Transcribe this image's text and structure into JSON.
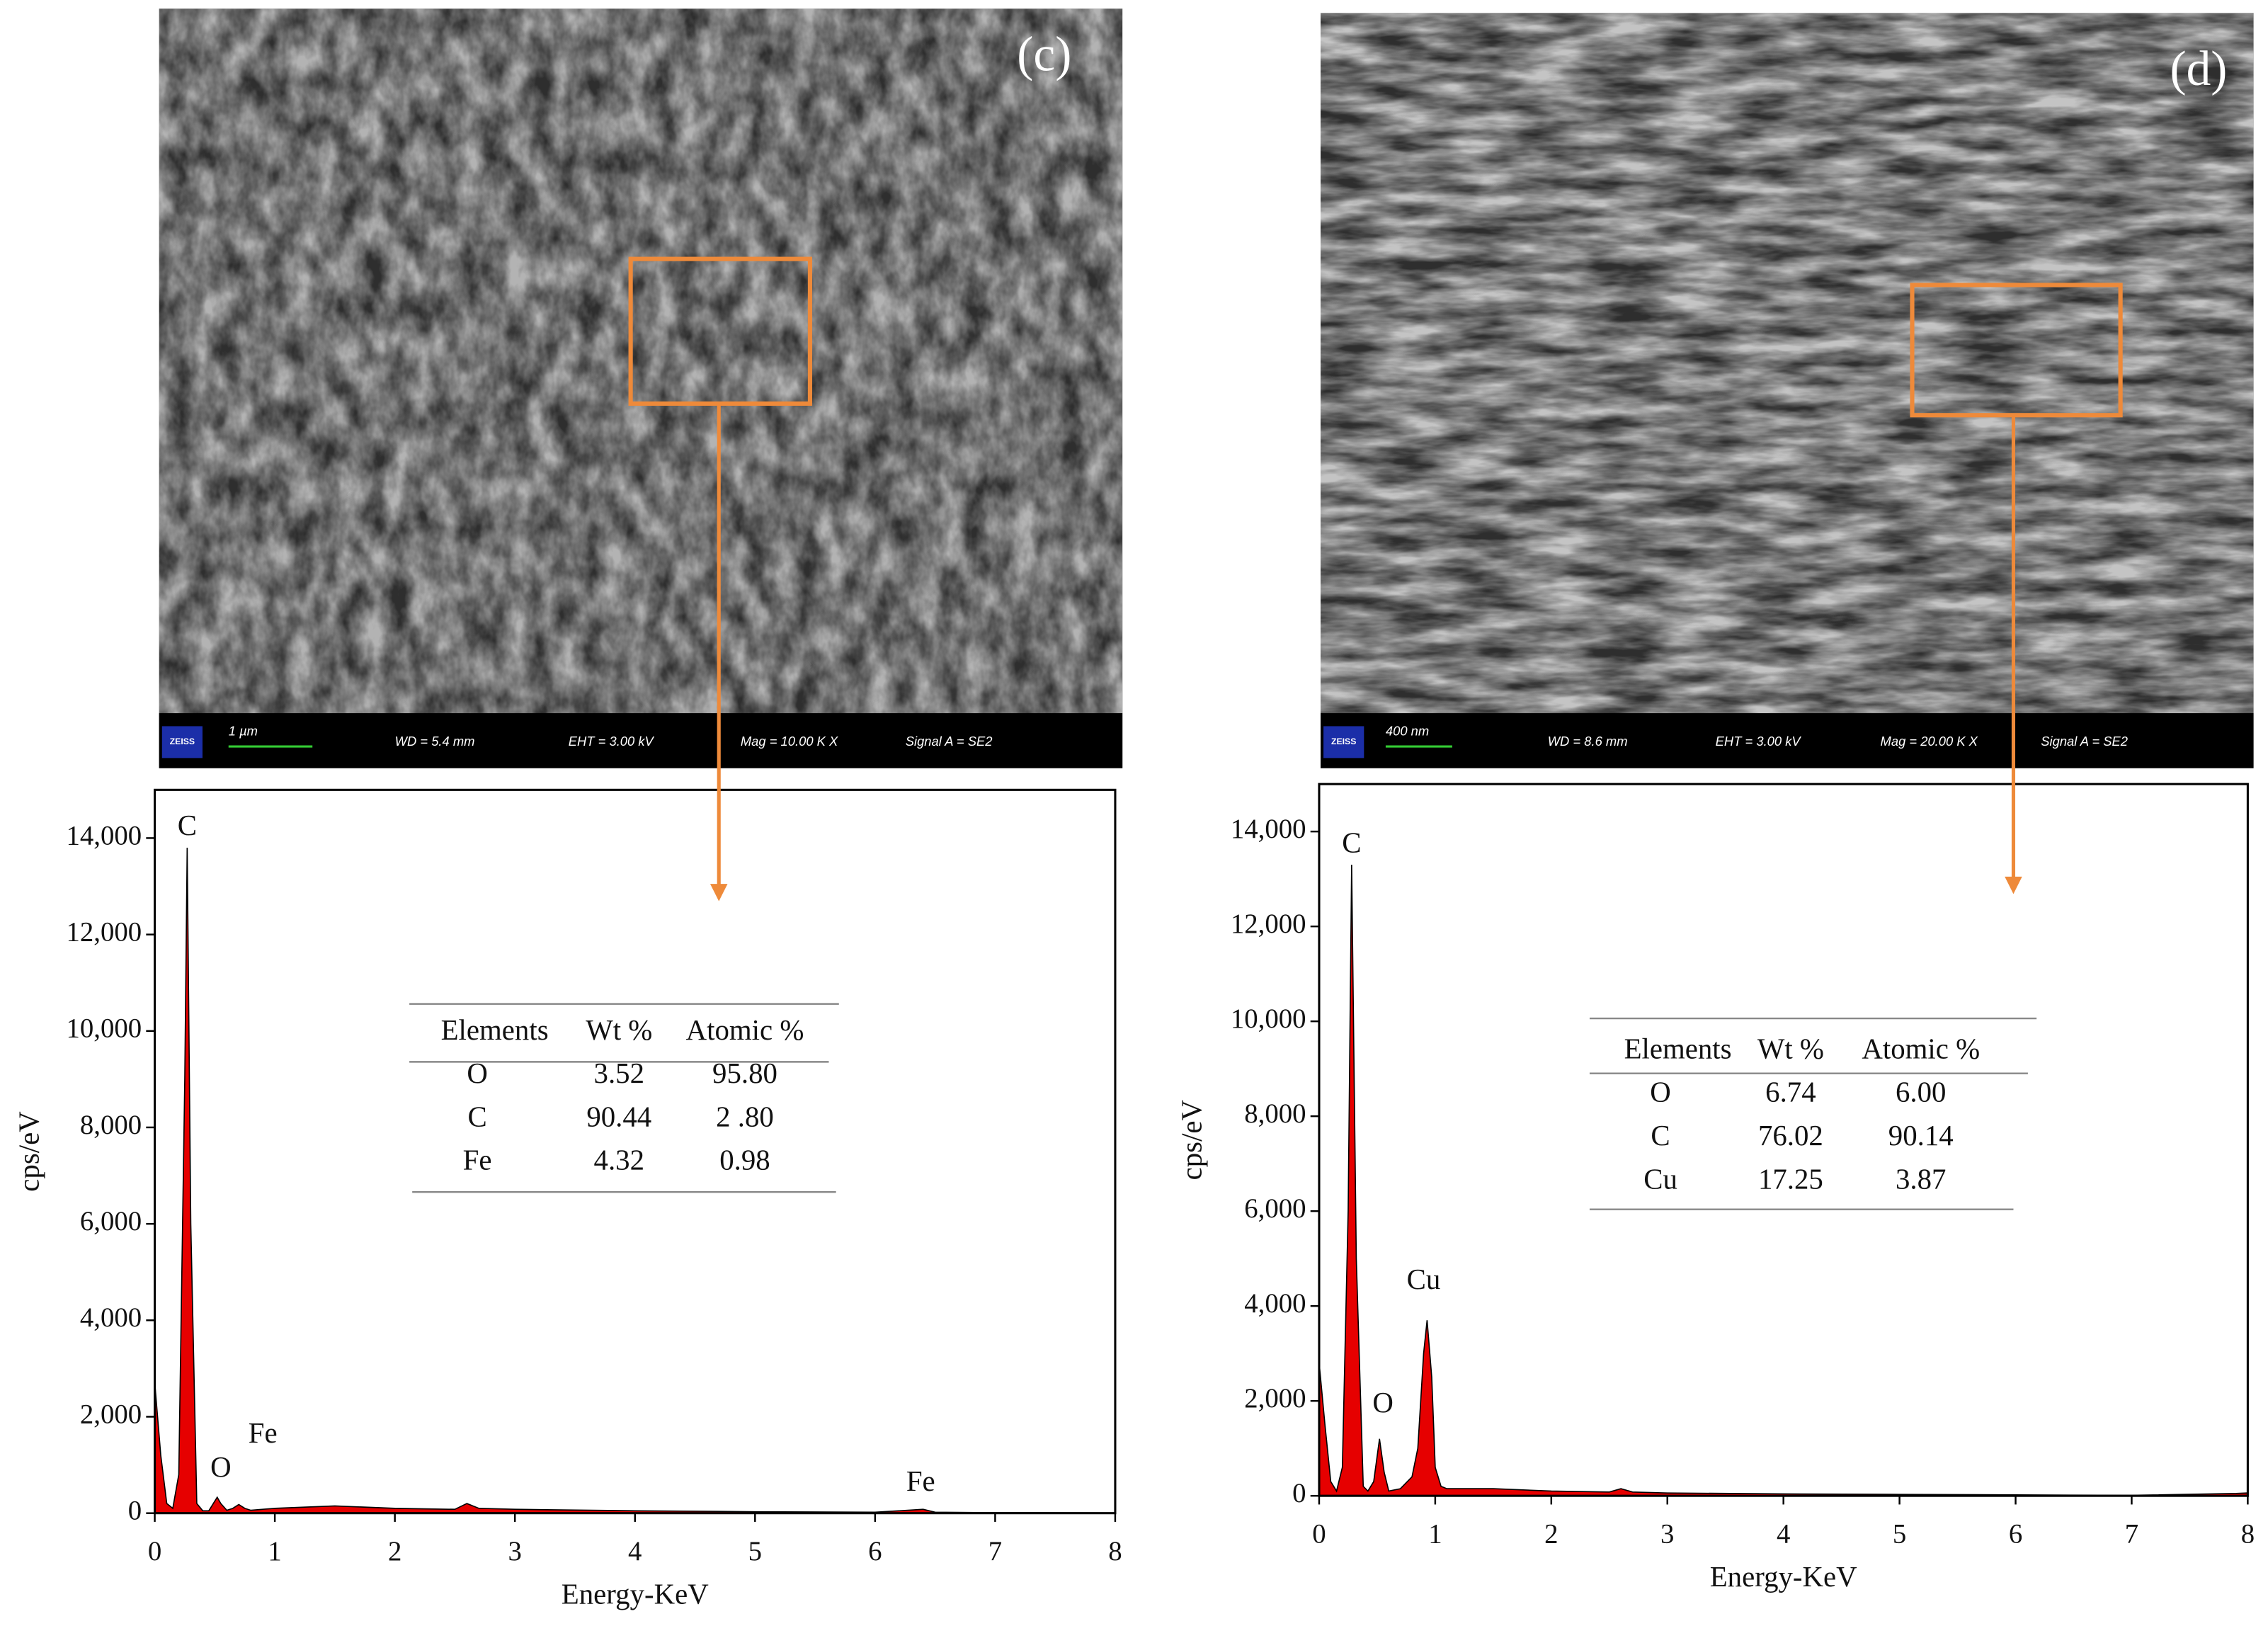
{
  "chart_data": [
    {
      "type": "area",
      "panel": "(c)",
      "sem_bar": [
        "ZEISS",
        "1 µm",
        "WD = 5.4 mm",
        "EHT = 3.00 kV",
        "Mag = 10.00 K X",
        "Signal A = SE2"
      ],
      "xlabel": "Energy-KeV",
      "ylabel": "cps/eV",
      "color": "#e60000",
      "x": [
        0,
        0.05,
        0.1,
        0.15,
        0.2,
        0.25,
        0.27,
        0.3,
        0.35,
        0.4,
        0.45,
        0.5,
        0.52,
        0.55,
        0.6,
        0.65,
        0.7,
        0.75,
        0.8,
        1,
        1.5,
        2,
        2.5,
        2.6,
        2.7,
        3,
        4,
        5,
        6,
        6.4,
        6.5,
        7,
        8
      ],
      "values": [
        2700,
        1200,
        200,
        100,
        800,
        9000,
        13800,
        6000,
        200,
        50,
        50,
        250,
        330,
        200,
        60,
        100,
        180,
        100,
        60,
        100,
        150,
        100,
        80,
        200,
        100,
        80,
        50,
        30,
        20,
        80,
        20,
        10,
        5
      ],
      "xlim": [
        0,
        8
      ],
      "xticks": [
        0,
        1,
        2,
        3,
        4,
        5,
        6,
        7,
        8
      ],
      "ylim": [
        0,
        15000
      ],
      "yticks": [
        0,
        {
          "value": 2000,
          "label": "2,000"
        },
        {
          "value": 4000,
          "label": "4,000"
        },
        {
          "value": 6000,
          "label": "6,000"
        },
        {
          "value": 8000,
          "label": "8,000"
        },
        {
          "value": 10000,
          "label": "10,000"
        },
        {
          "value": 12000,
          "label": "12,000"
        },
        {
          "value": 14000,
          "label": "14,000"
        }
      ],
      "annotations": [
        {
          "text": "C",
          "x": 0.27,
          "y": 14200
        },
        {
          "text": "O",
          "x": 0.55,
          "y": 900
        },
        {
          "text": "Fe",
          "x": 0.9,
          "y": 1600
        },
        {
          "text": "Fe",
          "x": 6.38,
          "y": 600
        }
      ],
      "table": {
        "header": [
          "Elements",
          "Wt %",
          "Atomic %"
        ],
        "rows": [
          [
            "O",
            "3.52",
            "95.80"
          ],
          [
            "C",
            "90.44",
            "2 .80"
          ],
          [
            "Fe",
            "4.32",
            "0.98"
          ]
        ]
      }
    },
    {
      "type": "area",
      "panel": "(d)",
      "sem_bar": [
        "ZEISS",
        "400 nm",
        "WD = 8.6 mm",
        "EHT = 3.00 kV",
        "Mag = 20.00 K X",
        "Signal A = SE2"
      ],
      "xlabel": "Energy-KeV",
      "ylabel": "cps/eV",
      "color": "#e60000",
      "x": [
        0,
        0.05,
        0.1,
        0.15,
        0.2,
        0.25,
        0.28,
        0.32,
        0.38,
        0.42,
        0.47,
        0.52,
        0.56,
        0.6,
        0.7,
        0.8,
        0.85,
        0.9,
        0.93,
        0.97,
        1.0,
        1.05,
        1.1,
        1.5,
        2,
        2.5,
        2.6,
        2.7,
        3,
        4,
        5,
        6,
        7,
        7.9,
        8
      ],
      "values": [
        2800,
        1500,
        300,
        100,
        600,
        6000,
        13300,
        5000,
        200,
        100,
        300,
        1200,
        500,
        100,
        150,
        400,
        1000,
        3000,
        3700,
        2500,
        600,
        200,
        150,
        150,
        100,
        80,
        150,
        80,
        60,
        40,
        30,
        20,
        10,
        50,
        60
      ],
      "xlim": [
        0,
        8
      ],
      "xticks": [
        0,
        1,
        2,
        3,
        4,
        5,
        6,
        7,
        8
      ],
      "ylim": [
        0,
        15000
      ],
      "yticks": [
        0,
        {
          "value": 2000,
          "label": "2,000"
        },
        {
          "value": 4000,
          "label": "4,000"
        },
        {
          "value": 6000,
          "label": "6,000"
        },
        {
          "value": 8000,
          "label": "8,000"
        },
        {
          "value": 10000,
          "label": "10,000"
        },
        {
          "value": 12000,
          "label": "12,000"
        },
        {
          "value": 14000,
          "label": "14,000"
        }
      ],
      "annotations": [
        {
          "text": "C",
          "x": 0.28,
          "y": 13700
        },
        {
          "text": "O",
          "x": 0.55,
          "y": 1900
        },
        {
          "text": "Cu",
          "x": 0.9,
          "y": 4500
        }
      ],
      "table": {
        "header": [
          "Elements",
          "Wt %",
          "Atomic %"
        ],
        "rows": [
          [
            "O",
            "6.74",
            "6.00"
          ],
          [
            "C",
            "76.02",
            "90.14"
          ],
          [
            "Cu",
            "17.25",
            "3.87"
          ]
        ]
      }
    }
  ]
}
